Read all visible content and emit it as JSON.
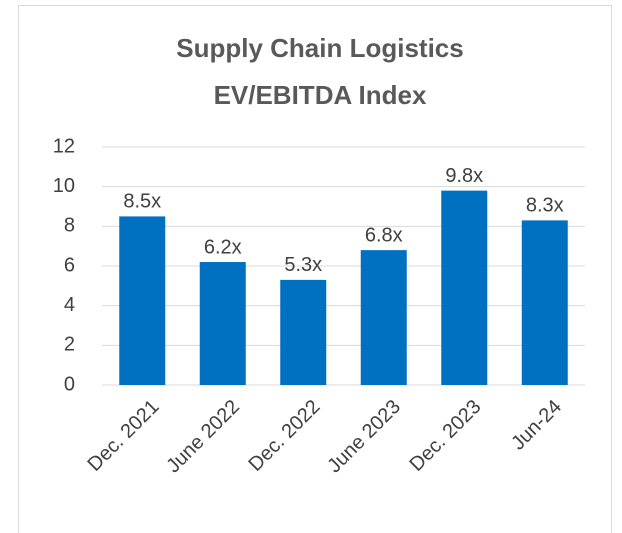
{
  "chart_data": {
    "type": "bar",
    "title": [
      "Supply Chain Logistics",
      "EV/EBITDA Index"
    ],
    "categories": [
      "Dec. 2021",
      "June 2022",
      "Dec. 2022",
      "June 2023",
      "Dec. 2023",
      "Jun-24"
    ],
    "values": [
      8.5,
      6.2,
      5.3,
      6.8,
      9.8,
      8.3
    ],
    "value_labels": [
      "8.5x",
      "6.2x",
      "5.3x",
      "6.8x",
      "9.8x",
      "8.3x"
    ],
    "color": "#0070c0",
    "ylim": [
      0,
      12
    ],
    "yticks": [
      0,
      2,
      4,
      6,
      8,
      10,
      12
    ],
    "grid": true
  }
}
